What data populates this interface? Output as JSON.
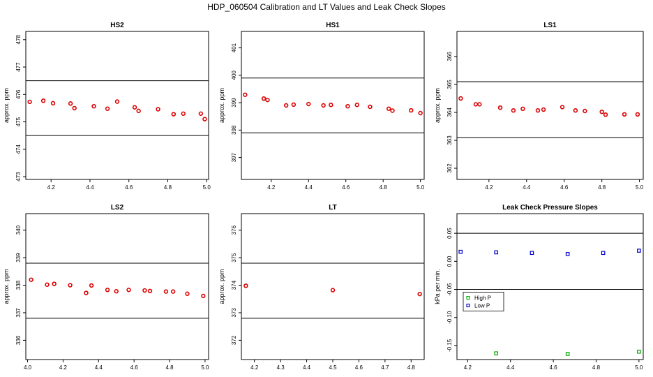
{
  "title": "HDP_060504  Calibration and LT Values and Leak Check Slopes",
  "colors": {
    "series_red": "#dd0000",
    "high_p": "#00aa00",
    "low_p": "#0000cc",
    "axis": "#000000"
  },
  "chart_data": [
    {
      "type": "scatter",
      "title": "HS2",
      "ylabel": "approx. ppm",
      "xlim": [
        4.07,
        5.01
      ],
      "ylim": [
        472.9,
        478.3
      ],
      "xticks": [
        4.2,
        4.4,
        4.6,
        4.8,
        5.0
      ],
      "xtick_labels": [
        "4.2",
        "4.4",
        "4.6",
        "4.8",
        "5.0"
      ],
      "yticks": [
        473,
        474,
        475,
        476,
        477,
        478
      ],
      "ytick_labels": [
        "473",
        "474",
        "475",
        "476",
        "477",
        "478"
      ],
      "hlines": [
        476.5,
        474.5
      ],
      "series": [
        {
          "color": "#dd0000",
          "points": [
            [
              4.09,
              475.73
            ],
            [
              4.16,
              475.77
            ],
            [
              4.21,
              475.68
            ],
            [
              4.3,
              475.67
            ],
            [
              4.32,
              475.5
            ],
            [
              4.42,
              475.57
            ],
            [
              4.49,
              475.48
            ],
            [
              4.54,
              475.74
            ],
            [
              4.63,
              475.53
            ],
            [
              4.65,
              475.4
            ],
            [
              4.75,
              475.46
            ],
            [
              4.83,
              475.28
            ],
            [
              4.88,
              475.3
            ],
            [
              4.97,
              475.3
            ],
            [
              4.99,
              475.1
            ]
          ]
        }
      ]
    },
    {
      "type": "scatter",
      "title": "HS1",
      "ylabel": "approx. ppm",
      "xlim": [
        4.04,
        5.02
      ],
      "ylim": [
        396.2,
        401.6
      ],
      "xticks": [
        4.2,
        4.4,
        4.6,
        4.8,
        5.0
      ],
      "xtick_labels": [
        "4.2",
        "4.4",
        "4.6",
        "4.8",
        "5.0"
      ],
      "yticks": [
        397,
        398,
        399,
        400,
        401
      ],
      "ytick_labels": [
        "397",
        "398",
        "399",
        "400",
        "401"
      ],
      "hlines": [
        399.9,
        397.9
      ],
      "series": [
        {
          "color": "#dd0000",
          "points": [
            [
              4.06,
              399.29
            ],
            [
              4.16,
              399.15
            ],
            [
              4.18,
              399.1
            ],
            [
              4.28,
              398.9
            ],
            [
              4.32,
              398.93
            ],
            [
              4.4,
              398.95
            ],
            [
              4.48,
              398.9
            ],
            [
              4.52,
              398.92
            ],
            [
              4.61,
              398.87
            ],
            [
              4.66,
              398.92
            ],
            [
              4.73,
              398.85
            ],
            [
              4.83,
              398.78
            ],
            [
              4.85,
              398.71
            ],
            [
              4.95,
              398.72
            ],
            [
              5.0,
              398.62
            ]
          ]
        }
      ]
    },
    {
      "type": "scatter",
      "title": "LS1",
      "ylabel": "approx. ppm",
      "xlim": [
        4.03,
        5.02
      ],
      "ylim": [
        361.6,
        366.9
      ],
      "xticks": [
        4.2,
        4.4,
        4.6,
        4.8,
        5.0
      ],
      "xtick_labels": [
        "4.2",
        "4.4",
        "4.6",
        "4.8",
        "5.0"
      ],
      "yticks": [
        362,
        363,
        364,
        365,
        366
      ],
      "ytick_labels": [
        "362",
        "363",
        "364",
        "365",
        "366"
      ],
      "hlines": [
        365.1,
        363.1
      ],
      "series": [
        {
          "color": "#dd0000",
          "points": [
            [
              4.05,
              364.5
            ],
            [
              4.13,
              364.29
            ],
            [
              4.15,
              364.29
            ],
            [
              4.26,
              364.17
            ],
            [
              4.33,
              364.07
            ],
            [
              4.38,
              364.13
            ],
            [
              4.46,
              364.07
            ],
            [
              4.49,
              364.1
            ],
            [
              4.59,
              364.19
            ],
            [
              4.66,
              364.07
            ],
            [
              4.71,
              364.05
            ],
            [
              4.8,
              364.02
            ],
            [
              4.82,
              363.92
            ],
            [
              4.92,
              363.93
            ],
            [
              4.99,
              363.93
            ]
          ]
        }
      ]
    },
    {
      "type": "scatter",
      "title": "LS2",
      "ylabel": "approx. ppm",
      "xlim": [
        3.99,
        5.02
      ],
      "ylim": [
        335.3,
        340.6
      ],
      "xticks": [
        4.0,
        4.2,
        4.4,
        4.6,
        4.8,
        5.0
      ],
      "xtick_labels": [
        "4.0",
        "4.2",
        "4.4",
        "4.6",
        "4.8",
        "5.0"
      ],
      "yticks": [
        336,
        337,
        338,
        339,
        340
      ],
      "ytick_labels": [
        "336",
        "337",
        "338",
        "339",
        "340"
      ],
      "hlines": [
        338.8,
        336.8
      ],
      "series": [
        {
          "color": "#dd0000",
          "points": [
            [
              4.02,
              338.2
            ],
            [
              4.11,
              338.02
            ],
            [
              4.15,
              338.05
            ],
            [
              4.24,
              338.0
            ],
            [
              4.33,
              337.72
            ],
            [
              4.36,
              337.99
            ],
            [
              4.45,
              337.83
            ],
            [
              4.5,
              337.78
            ],
            [
              4.57,
              337.83
            ],
            [
              4.66,
              337.81
            ],
            [
              4.69,
              337.79
            ],
            [
              4.78,
              337.77
            ],
            [
              4.82,
              337.77
            ],
            [
              4.9,
              337.69
            ],
            [
              4.99,
              337.61
            ]
          ]
        }
      ]
    },
    {
      "type": "scatter",
      "title": "LT",
      "ylabel": "approx. ppm",
      "xlim": [
        4.15,
        4.85
      ],
      "ylim": [
        371.3,
        376.6
      ],
      "xticks": [
        4.2,
        4.3,
        4.4,
        4.5,
        4.6,
        4.7,
        4.8
      ],
      "xtick_labels": [
        "4.2",
        "4.3",
        "4.4",
        "4.5",
        "4.6",
        "4.7",
        "4.8"
      ],
      "yticks": [
        372,
        373,
        374,
        375,
        376
      ],
      "ytick_labels": [
        "372",
        "373",
        "374",
        "375",
        "376"
      ],
      "hlines": [
        374.8,
        372.8
      ],
      "series": [
        {
          "color": "#dd0000",
          "points": [
            [
              4.167,
              373.98
            ],
            [
              4.5,
              373.82
            ],
            [
              4.833,
              373.68
            ]
          ]
        }
      ]
    },
    {
      "type": "scatter",
      "title": "Leak Check Pressure Slopes",
      "ylabel": "kPa per min.",
      "xlim": [
        4.15,
        5.02
      ],
      "ylim": [
        -0.175,
        0.085
      ],
      "xticks": [
        4.2,
        4.4,
        4.6,
        4.8,
        5.0
      ],
      "xtick_labels": [
        "4.2",
        "4.4",
        "4.6",
        "4.8",
        "5.0"
      ],
      "yticks": [
        0.05,
        0.0,
        -0.05,
        -0.1,
        -0.15
      ],
      "ytick_labels": [
        "0.05",
        "0.00",
        "-0.05",
        "-0.10",
        "-0.15"
      ],
      "hlines": [
        0.05,
        -0.05
      ],
      "series": [
        {
          "name": "High P",
          "color": "#00aa00",
          "points": [
            [
              4.333,
              -0.164
            ],
            [
              4.667,
              -0.165
            ],
            [
              5.0,
              -0.161
            ]
          ]
        },
        {
          "name": "Low P",
          "color": "#0000cc",
          "points": [
            [
              4.167,
              0.017
            ],
            [
              4.333,
              0.016
            ],
            [
              4.5,
              0.015
            ],
            [
              4.667,
              0.013
            ],
            [
              4.833,
              0.015
            ],
            [
              5.0,
              0.019
            ]
          ]
        }
      ],
      "legend": "inside left"
    }
  ]
}
